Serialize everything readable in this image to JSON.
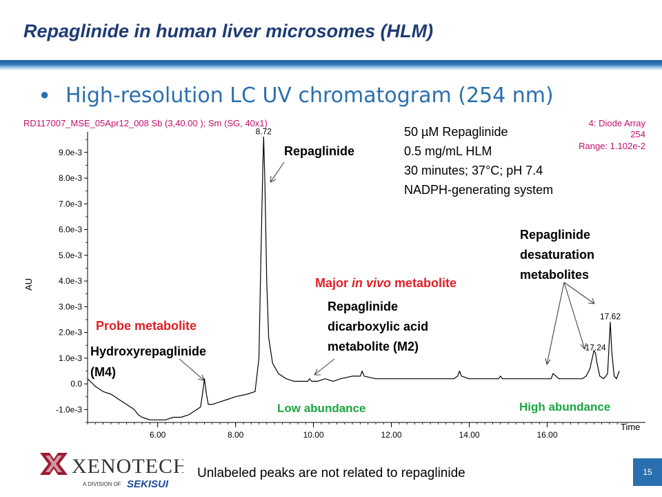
{
  "slide": {
    "title": "Repaglinide in human liver microsomes (HLM)",
    "bullet": "High-resolution  LC UV chromatogram (254 nm)",
    "footer_note": "Unlabeled peaks are not related to repaglinide",
    "page_number": "15",
    "logo": {
      "name": "XenoTech",
      "tagline": "A DIVISION OF",
      "parent": "SEKISUI"
    },
    "colors": {
      "title": "#1f3b74",
      "bullet": "#2a6fb0",
      "instrument_text": "#c0106b",
      "accent_red": "#e31e24",
      "accent_green": "#1aa63f"
    }
  },
  "chart_data": {
    "type": "line",
    "header_left": "RD117007_MSE_05Apr12_008 Sb (3,40.00 ); Sm (SG, 40x1)",
    "header_right": [
      "4: Diode Array",
      "254",
      "Range: 1.102e-2"
    ],
    "ylabel": "AU",
    "xlabel": "Time",
    "xlim": [
      4.2,
      17.85
    ],
    "ylim": [
      -0.0015,
      0.0098
    ],
    "xticks": [
      "6.00",
      "8.00",
      "10.00",
      "12.00",
      "14.00",
      "16.00"
    ],
    "xtick_values": [
      6,
      8,
      10,
      12,
      14,
      16
    ],
    "yticks": [
      "9.0e-3",
      "8.0e-3",
      "7.0e-3",
      "6.0e-3",
      "5.0e-3",
      "4.0e-3",
      "3.0e-3",
      "2.0e-3",
      "1.0e-3",
      "0.0",
      "-1.0e-3"
    ],
    "ytick_values": [
      0.009,
      0.008,
      0.007,
      0.006,
      0.005,
      0.004,
      0.003,
      0.002,
      0.001,
      0.0,
      -0.001
    ],
    "series": [
      {
        "x": [
          4.2,
          4.4,
          4.6,
          4.8,
          5.0,
          5.2,
          5.4,
          5.5,
          5.6,
          5.8,
          6.0,
          6.2,
          6.4,
          6.6,
          6.8,
          7.0,
          7.1,
          7.15,
          7.2,
          7.25,
          7.3,
          7.4,
          7.6,
          7.8,
          8.0,
          8.3,
          8.5,
          8.6,
          8.65,
          8.7,
          8.72,
          8.75,
          8.8,
          8.85,
          8.95,
          9.1,
          9.3,
          9.5,
          9.7,
          9.85,
          9.9,
          9.95,
          10.1,
          10.3,
          10.5,
          10.7,
          11.0,
          11.2,
          11.25,
          11.3,
          11.6,
          12.0,
          12.4,
          12.8,
          13.2,
          13.6,
          13.7,
          13.75,
          13.8,
          14.0,
          14.4,
          14.75,
          14.8,
          14.85,
          15.0,
          15.4,
          15.8,
          16.0,
          16.1,
          16.15,
          16.3,
          16.6,
          16.9,
          17.0,
          17.1,
          17.2,
          17.24,
          17.28,
          17.35,
          17.45,
          17.55,
          17.62,
          17.66,
          17.72,
          17.78,
          17.85
        ],
        "y": [
          0.0002,
          -0.0001,
          -0.0003,
          -0.0004,
          -0.0006,
          -0.0008,
          -0.001,
          -0.0012,
          -0.0013,
          -0.0014,
          -0.0014,
          -0.0014,
          -0.0013,
          -0.0013,
          -0.0012,
          -0.001,
          -0.0009,
          -0.0004,
          0.0002,
          -0.0004,
          -0.0008,
          -0.0008,
          -0.0007,
          -0.0006,
          -0.0005,
          -0.0004,
          -0.0003,
          0.001,
          0.005,
          0.0085,
          0.0096,
          0.008,
          0.004,
          0.0018,
          0.0008,
          0.0004,
          0.0002,
          0.0001,
          0.0001,
          0.0001,
          0.0002,
          0.0001,
          0.0001,
          0.0002,
          0.0001,
          0.0002,
          0.0003,
          0.0003,
          0.0005,
          0.0003,
          0.0002,
          0.0002,
          0.0002,
          0.0002,
          0.0002,
          0.0002,
          0.0003,
          0.0005,
          0.0003,
          0.0002,
          0.0002,
          0.0002,
          0.0003,
          0.0002,
          0.0002,
          0.0002,
          0.0002,
          0.0002,
          0.0002,
          0.0004,
          0.0002,
          0.0002,
          0.0002,
          0.0003,
          0.0006,
          0.0013,
          0.0012,
          0.0008,
          0.0003,
          0.0002,
          0.0004,
          0.0024,
          0.0012,
          0.0003,
          0.0002,
          0.0005
        ]
      }
    ],
    "peak_labels": [
      {
        "text": "8.72",
        "x": 8.72,
        "y": 0.0096
      },
      {
        "text": "17.62",
        "x": 17.62,
        "y": 0.0024
      },
      {
        "text": "17.24",
        "x": 17.24,
        "y": 0.0012
      }
    ],
    "annotations": {
      "conditions": [
        "50 µM Repaglinide",
        "0.5 mg/mL HLM",
        "30 minutes; 37°C; pH 7.4",
        "NADPH-generating system"
      ],
      "repaglinide": "Repaglinide",
      "probe_metabolite": "Probe metabolite",
      "m4_line1": "Hydroxyrepaglinide",
      "m4_line2": "(M4)",
      "major_prefix": "Major ",
      "major_italic": "in vivo",
      "major_suffix": " metabolite",
      "m2_line1": "Repaglinide",
      "m2_line2": "dicarboxylic acid",
      "m2_line3": "metabolite (M2)",
      "low_abundance": "Low abundance",
      "desat_line1": "Repaglinide",
      "desat_line2": "desaturation",
      "desat_line3": "metabolites",
      "high_abundance": "High abundance"
    }
  }
}
